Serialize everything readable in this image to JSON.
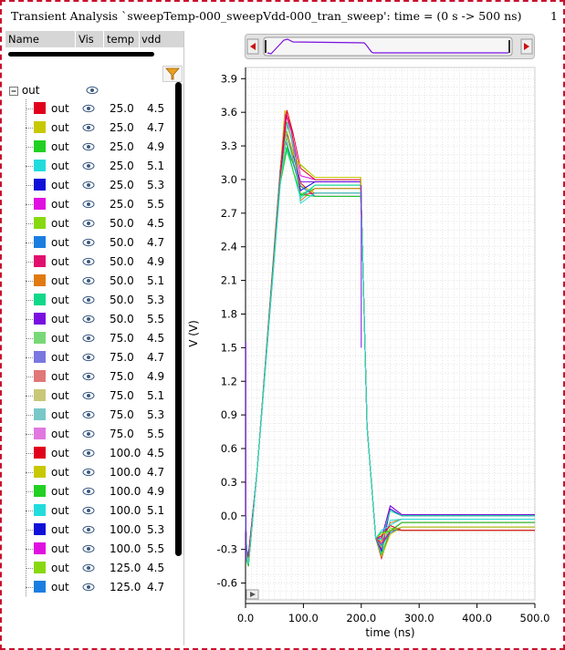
{
  "window": {
    "title": "Transient Analysis `sweepTemp-000_sweepVdd-000_tran_sweep': time = (0 s -> 500 ns)",
    "corner_number": "1"
  },
  "left_panel": {
    "columns": [
      "Name",
      "Vis",
      "temp",
      "vdd"
    ],
    "root_label": "out",
    "rows": [
      {
        "name": "out",
        "temp": "25.0",
        "vdd": "4.5",
        "color": "#e0001b"
      },
      {
        "name": "out",
        "temp": "25.0",
        "vdd": "4.7",
        "color": "#c8c800"
      },
      {
        "name": "out",
        "temp": "25.0",
        "vdd": "4.9",
        "color": "#22d022"
      },
      {
        "name": "out",
        "temp": "25.0",
        "vdd": "5.1",
        "color": "#22dcdc"
      },
      {
        "name": "out",
        "temp": "25.0",
        "vdd": "5.3",
        "color": "#1010d8"
      },
      {
        "name": "out",
        "temp": "25.0",
        "vdd": "5.5",
        "color": "#e010e0"
      },
      {
        "name": "out",
        "temp": "50.0",
        "vdd": "4.5",
        "color": "#88d810"
      },
      {
        "name": "out",
        "temp": "50.0",
        "vdd": "4.7",
        "color": "#1a7ee0"
      },
      {
        "name": "out",
        "temp": "50.0",
        "vdd": "4.9",
        "color": "#e0106e"
      },
      {
        "name": "out",
        "temp": "50.0",
        "vdd": "5.1",
        "color": "#e07a10"
      },
      {
        "name": "out",
        "temp": "50.0",
        "vdd": "5.3",
        "color": "#10d888"
      },
      {
        "name": "out",
        "temp": "50.0",
        "vdd": "5.5",
        "color": "#7a10e0"
      },
      {
        "name": "out",
        "temp": "75.0",
        "vdd": "4.5",
        "color": "#78d878"
      },
      {
        "name": "out",
        "temp": "75.0",
        "vdd": "4.7",
        "color": "#7878e0"
      },
      {
        "name": "out",
        "temp": "75.0",
        "vdd": "4.9",
        "color": "#e07878"
      },
      {
        "name": "out",
        "temp": "75.0",
        "vdd": "5.1",
        "color": "#c8c878"
      },
      {
        "name": "out",
        "temp": "75.0",
        "vdd": "5.3",
        "color": "#78c8c8"
      },
      {
        "name": "out",
        "temp": "75.0",
        "vdd": "5.5",
        "color": "#e078e0"
      },
      {
        "name": "out",
        "temp": "100.0",
        "vdd": "4.5",
        "color": "#e0001b"
      },
      {
        "name": "out",
        "temp": "100.0",
        "vdd": "4.7",
        "color": "#c8c800"
      },
      {
        "name": "out",
        "temp": "100.0",
        "vdd": "4.9",
        "color": "#22d022"
      },
      {
        "name": "out",
        "temp": "100.0",
        "vdd": "5.1",
        "color": "#22dcdc"
      },
      {
        "name": "out",
        "temp": "100.0",
        "vdd": "5.3",
        "color": "#1010d8"
      },
      {
        "name": "out",
        "temp": "100.0",
        "vdd": "5.5",
        "color": "#e010e0"
      },
      {
        "name": "out",
        "temp": "125.0",
        "vdd": "4.5",
        "color": "#88d810"
      },
      {
        "name": "out",
        "temp": "125.0",
        "vdd": "4.7",
        "color": "#1a7ee0"
      }
    ]
  },
  "chart_data": {
    "type": "line",
    "xlabel": "time (ns)",
    "ylabel": "V (V)",
    "xlim": [
      0,
      500
    ],
    "ylim": [
      -0.75,
      4.0
    ],
    "x_ticks": [
      "0.0",
      "100.0",
      "200.0",
      "300.0",
      "400.0",
      "500.0"
    ],
    "y_ticks": [
      "3.9",
      "3.6",
      "3.3",
      "3.0",
      "2.7",
      "2.4",
      "2.1",
      "1.8",
      "1.5",
      "1.2",
      "0.9",
      "0.6",
      "0.3",
      "0.0",
      "-0.3",
      "-0.6"
    ],
    "x_tick_values": [
      0,
      100,
      200,
      300,
      400,
      500
    ],
    "y_tick_values": [
      3.9,
      3.6,
      3.3,
      3.0,
      2.7,
      2.4,
      2.1,
      1.8,
      1.5,
      1.2,
      0.9,
      0.6,
      0.3,
      0.0,
      -0.3,
      -0.6
    ],
    "grid": true,
    "series_colors": [
      "#e0001b",
      "#c8c800",
      "#22d022",
      "#22dcdc",
      "#1010d8",
      "#e010e0",
      "#88d810",
      "#1a7ee0",
      "#e0106e",
      "#e07a10",
      "#10d888",
      "#7a10e0"
    ],
    "typical_waveform": {
      "x": [
        0,
        2,
        5,
        20,
        60,
        70,
        80,
        95,
        120,
        150,
        199,
        201,
        210,
        225,
        235,
        250,
        270,
        300,
        350,
        500
      ],
      "y": [
        0.0,
        -0.35,
        -0.4,
        0.4,
        3.1,
        3.58,
        3.45,
        3.05,
        2.95,
        2.93,
        2.93,
        2.6,
        0.8,
        -0.2,
        -0.35,
        -0.1,
        0.0,
        -0.03,
        -0.03,
        -0.03
      ]
    },
    "settle_high_values": [
      2.85,
      2.88,
      2.92,
      2.95,
      2.98,
      3.0,
      3.02
    ],
    "settle_low_values": [
      -0.13,
      -0.1,
      -0.06,
      -0.03,
      0.0,
      0.01
    ]
  }
}
